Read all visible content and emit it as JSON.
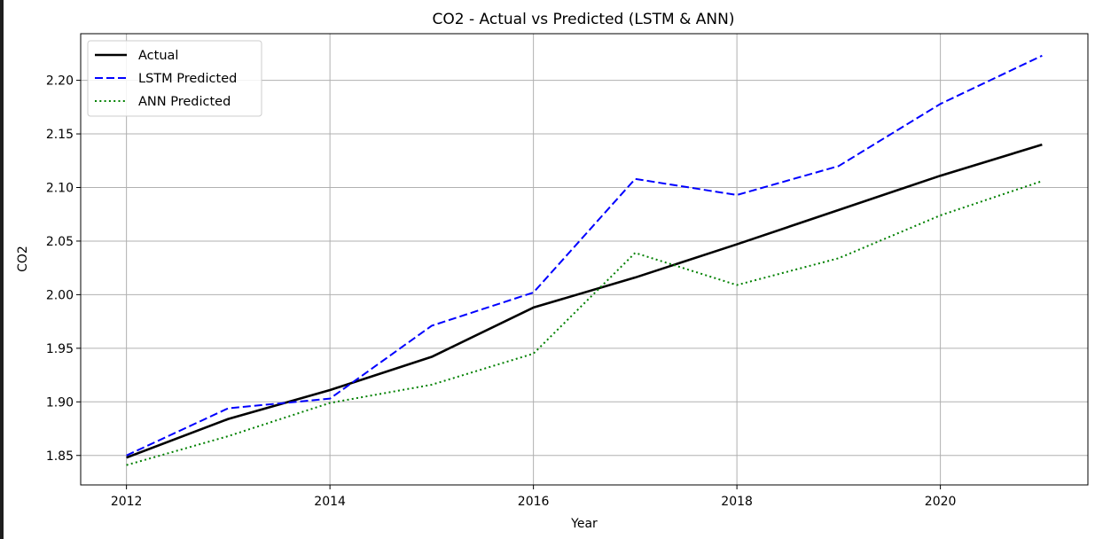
{
  "chart_data": {
    "type": "line",
    "title": "CO2 - Actual vs Predicted (LSTM & ANN)",
    "xlabel": "Year",
    "ylabel": "CO2",
    "x": [
      2012,
      2013,
      2014,
      2015,
      2016,
      2017,
      2018,
      2019,
      2020,
      2021
    ],
    "xlim": [
      2011.55,
      2021.45
    ],
    "ylim": [
      1.8225,
      2.2435
    ],
    "xticks": [
      2012,
      2014,
      2016,
      2018,
      2020
    ],
    "yticks": [
      1.85,
      1.9,
      1.95,
      2.0,
      2.05,
      2.1,
      2.15,
      2.2
    ],
    "xtick_labels": [
      "2012",
      "2014",
      "2016",
      "2018",
      "2020"
    ],
    "ytick_labels": [
      "1.85",
      "1.90",
      "1.95",
      "2.00",
      "2.05",
      "2.10",
      "2.15",
      "2.20"
    ],
    "grid": true,
    "legend_position": "top-left",
    "series": [
      {
        "name": "Actual",
        "color": "#000000",
        "style": "solid",
        "values": [
          1.848,
          1.884,
          1.911,
          1.942,
          1.988,
          2.016,
          2.047,
          2.079,
          2.111,
          2.14
        ]
      },
      {
        "name": "LSTM Predicted",
        "color": "#0000ff",
        "style": "dashed",
        "values": [
          1.85,
          1.894,
          1.903,
          1.971,
          2.002,
          2.108,
          2.093,
          2.12,
          2.178,
          2.223
        ]
      },
      {
        "name": "ANN Predicted",
        "color": "#008000",
        "style": "dotted",
        "values": [
          1.841,
          1.868,
          1.899,
          1.916,
          1.945,
          2.039,
          2.009,
          2.034,
          2.074,
          2.106
        ]
      }
    ]
  }
}
